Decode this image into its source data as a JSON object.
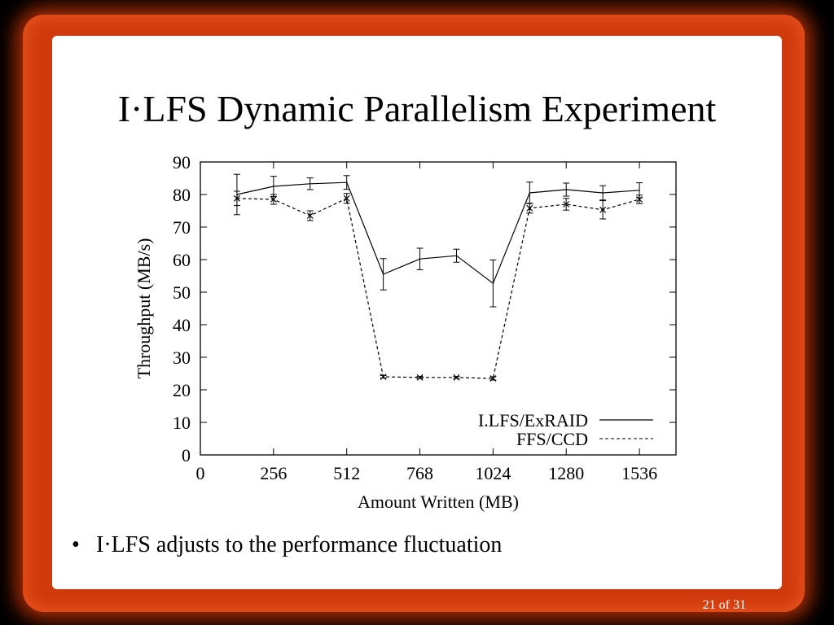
{
  "slide": {
    "title": "I·LFS Dynamic Parallelism Experiment",
    "bullets": [
      "I·LFS adjusts to the performance fluctuation"
    ],
    "page_number": "21 of 31"
  },
  "colors": {
    "frame": "#cf3a0d",
    "background": "#000000",
    "slide": "#ffffff"
  },
  "chart_data": {
    "type": "line",
    "xlabel": "Amount Written (MB)",
    "ylabel": "Throughput (MB/s)",
    "xlim": [
      0,
      1664
    ],
    "ylim": [
      0,
      90
    ],
    "xticks": [
      0,
      256,
      512,
      768,
      1024,
      1280,
      1536
    ],
    "yticks": [
      0,
      10,
      20,
      30,
      40,
      50,
      60,
      70,
      80,
      90
    ],
    "legend_position": "bottom-right",
    "grid": false,
    "x": [
      128,
      256,
      384,
      512,
      640,
      768,
      896,
      1024,
      1152,
      1280,
      1408,
      1536
    ],
    "series": [
      {
        "name": "I.LFS/ExRAID",
        "line_style": "solid",
        "marker": "none",
        "values": [
          80,
          82.5,
          83.3,
          83.7,
          55.5,
          60.2,
          61.2,
          52.7,
          80.5,
          81.5,
          80.5,
          81.3
        ],
        "error": [
          6.2,
          3.1,
          1.8,
          2.1,
          4.8,
          3.3,
          2.0,
          7.2,
          3.3,
          2.0,
          2.2,
          2.3
        ]
      },
      {
        "name": "FFS/CCD",
        "line_style": "dashed",
        "marker": "x",
        "values": [
          78.8,
          78.5,
          73.5,
          78.8,
          24,
          23.8,
          23.8,
          23.5,
          75.8,
          77,
          75.3,
          78.5
        ],
        "error": [
          2.2,
          1.5,
          1.5,
          1.5,
          0.4,
          0.3,
          0.3,
          0.5,
          1.5,
          1.8,
          2.8,
          1.3
        ]
      }
    ]
  }
}
